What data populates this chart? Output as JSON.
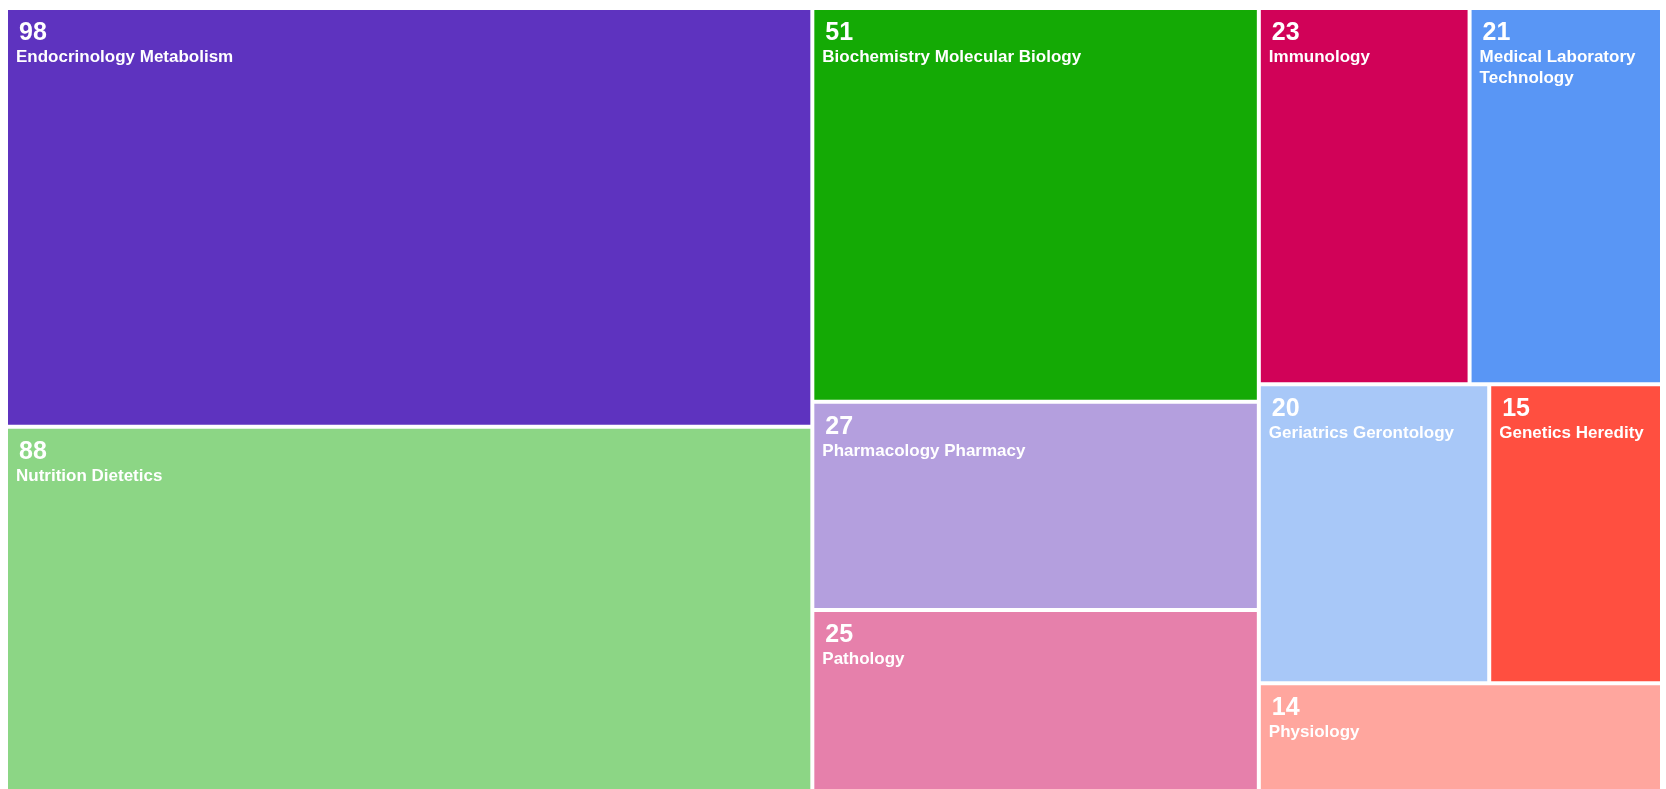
{
  "chart_data": {
    "type": "other",
    "categories": [
      "Endocrinology Metabolism",
      "Nutrition Dietetics",
      "Biochemistry Molecular Biology",
      "Pharmacology Pharmacy",
      "Pathology",
      "Immunology",
      "Medical Laboratory Technology",
      "Geriatrics Gerontology",
      "Genetics Heredity",
      "Physiology"
    ],
    "values": [
      98,
      88,
      51,
      27,
      25,
      23,
      21,
      20,
      15,
      14
    ],
    "colors": [
      "#5e33bf",
      "#8cd685",
      "#14aa05",
      "#b49fde",
      "#e680ab",
      "#d10258",
      "#5996f5",
      "#a8c8f8",
      "#ff4f40",
      "#ffa69e"
    ],
    "data_labels": true
  }
}
